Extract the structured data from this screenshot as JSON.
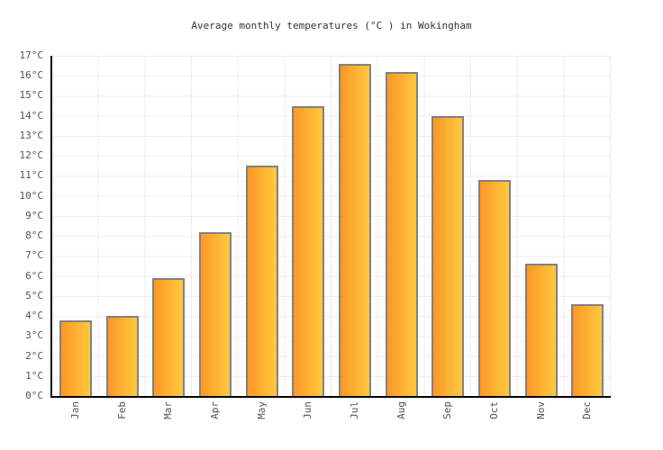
{
  "title": "Average monthly temperatures (°C ) in Wokingham",
  "colors": {
    "background": "#ffffff",
    "grid_line": "#ededed",
    "axis_line": "#000000",
    "bar_border": "#818181",
    "bar_gradient_left": "#fd9727",
    "bar_gradient_right": "#ffc93e",
    "tick_label": "#545454",
    "title_text": "#333333"
  },
  "chart_data": {
    "type": "bar",
    "title": "Average monthly temperatures (°C ) in Wokingham",
    "categories": [
      "Jan",
      "Feb",
      "Mar",
      "Apr",
      "May",
      "Jun",
      "Jul",
      "Aug",
      "Sep",
      "Oct",
      "Nov",
      "Dec"
    ],
    "values": [
      3.8,
      4.0,
      5.9,
      8.2,
      11.5,
      14.5,
      16.6,
      16.2,
      14.0,
      10.8,
      6.6,
      4.6
    ],
    "xlabel": "",
    "ylabel": "",
    "unit": "°C",
    "ylim": [
      0,
      17
    ],
    "y_tick_step": 1,
    "y_tick_labels": [
      "0°C",
      "1°C",
      "2°C",
      "3°C",
      "4°C",
      "5°C",
      "6°C",
      "7°C",
      "8°C",
      "9°C",
      "10°C",
      "11°C",
      "12°C",
      "13°C",
      "14°C",
      "15°C",
      "16°C",
      "17°C"
    ],
    "grid": true,
    "legend": "none",
    "bar_orientation": "vertical"
  }
}
